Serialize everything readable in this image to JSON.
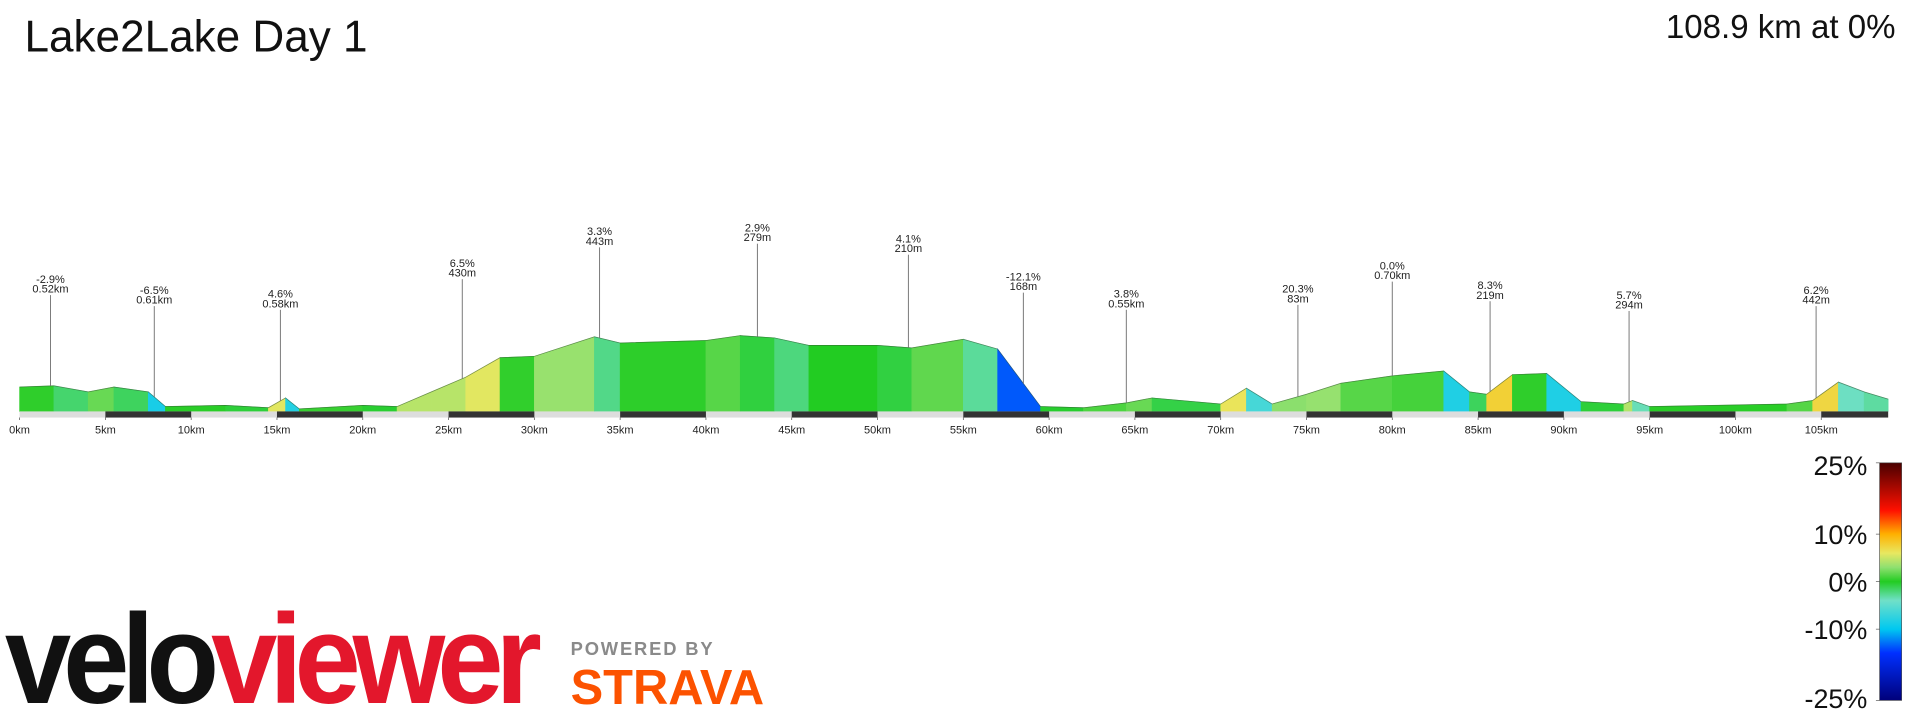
{
  "title": "Lake2Lake Day 1",
  "summary": "108.9 km at 0%",
  "chart_data": {
    "type": "area",
    "x": [
      0,
      2,
      4,
      5.5,
      7.5,
      8.5,
      12,
      14.5,
      15.5,
      16.3,
      20,
      22,
      24,
      26,
      28,
      30,
      33.5,
      35,
      40,
      42,
      44,
      46,
      50,
      52,
      55,
      57,
      59.5,
      62,
      64.5,
      66,
      70,
      71.5,
      73,
      75,
      77,
      80,
      83,
      84.5,
      85.5,
      87,
      89,
      91,
      93.5,
      94,
      95,
      103,
      104.5,
      106,
      107.5,
      108.9
    ],
    "values": [
      145,
      152,
      116,
      145,
      116,
      29,
      36,
      22,
      80,
      15,
      36,
      29,
      116,
      203,
      319,
      327,
      443,
      406,
      421,
      450,
      436,
      392,
      392,
      377,
      428,
      370,
      29,
      22,
      51,
      80,
      44,
      138,
      44,
      102,
      167,
      211,
      240,
      116,
      102,
      218,
      225,
      58,
      44,
      65,
      29,
      44,
      65,
      174,
      116,
      73
    ],
    "xlim": [
      0,
      108.9
    ],
    "ylim": [
      0,
      600
    ],
    "xticks": [
      {
        "value": 0,
        "label": "0km"
      },
      {
        "value": 5,
        "label": "5km"
      },
      {
        "value": 10,
        "label": "10km"
      },
      {
        "value": 15,
        "label": "15km"
      },
      {
        "value": 20,
        "label": "20km"
      },
      {
        "value": 25,
        "label": "25km"
      },
      {
        "value": 30,
        "label": "30km"
      },
      {
        "value": 35,
        "label": "35km"
      },
      {
        "value": 40,
        "label": "40km"
      },
      {
        "value": 45,
        "label": "45km"
      },
      {
        "value": 50,
        "label": "50km"
      },
      {
        "value": 55,
        "label": "55km"
      },
      {
        "value": 60,
        "label": "60km"
      },
      {
        "value": 65,
        "label": "65km"
      },
      {
        "value": 70,
        "label": "70km"
      },
      {
        "value": 75,
        "label": "75km"
      },
      {
        "value": 80,
        "label": "80km"
      },
      {
        "value": 85,
        "label": "85km"
      },
      {
        "value": 90,
        "label": "90km"
      },
      {
        "value": 95,
        "label": "95km"
      },
      {
        "value": 100,
        "label": "100km"
      },
      {
        "value": 105,
        "label": "105km"
      }
    ],
    "annotations": [
      {
        "x": 1.8,
        "lines": [
          "-2.9%",
          "0.52km"
        ]
      },
      {
        "x": 7.85,
        "lines": [
          "-6.5%",
          "0.61km"
        ]
      },
      {
        "x": 15.2,
        "lines": [
          "4.6%",
          "0.58km"
        ]
      },
      {
        "x": 25.8,
        "lines": [
          "6.5%",
          "430m"
        ]
      },
      {
        "x": 33.8,
        "lines": [
          "3.3%",
          "443m"
        ]
      },
      {
        "x": 43,
        "lines": [
          "2.9%",
          "279m"
        ]
      },
      {
        "x": 51.8,
        "lines": [
          "4.1%",
          "210m"
        ]
      },
      {
        "x": 58.5,
        "lines": [
          "-12.1%",
          "168m"
        ]
      },
      {
        "x": 64.5,
        "lines": [
          "3.8%",
          "0.55km"
        ]
      },
      {
        "x": 74.5,
        "lines": [
          "20.3%",
          "83m"
        ]
      },
      {
        "x": 80,
        "lines": [
          "0.0%",
          "0.70km"
        ]
      },
      {
        "x": 85.7,
        "lines": [
          "8.3%",
          "219m"
        ]
      },
      {
        "x": 93.8,
        "lines": [
          "5.7%",
          "294m"
        ]
      },
      {
        "x": 104.7,
        "lines": [
          "6.2%",
          "442m"
        ]
      }
    ],
    "colorbar": {
      "lim": [
        -25,
        25
      ],
      "ticks": [
        {
          "value": 25,
          "label": "25%"
        },
        {
          "value": 10,
          "label": "10%"
        },
        {
          "value": 0,
          "label": "0%"
        },
        {
          "value": -10,
          "label": "-10%"
        },
        {
          "value": -25,
          "label": "-25%"
        }
      ],
      "stops": [
        {
          "value": -25,
          "color": "#00007a"
        },
        {
          "value": -15,
          "color": "#0030ff"
        },
        {
          "value": -10,
          "color": "#00c8f0"
        },
        {
          "value": -4,
          "color": "#70e0c8"
        },
        {
          "value": 0,
          "color": "#22cc22"
        },
        {
          "value": 3,
          "color": "#8fe070"
        },
        {
          "value": 6,
          "color": "#e8e860"
        },
        {
          "value": 10,
          "color": "#ffb000"
        },
        {
          "value": 15,
          "color": "#ff1000"
        },
        {
          "value": 25,
          "color": "#4a0000"
        }
      ]
    }
  },
  "branding": {
    "velo": "velo",
    "viewer": "viewer",
    "powered": "POWERED BY",
    "strava": "STRAVA"
  }
}
